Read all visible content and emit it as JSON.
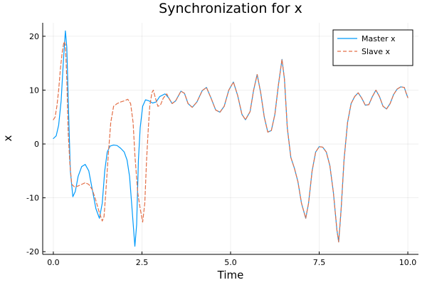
{
  "chart_data": {
    "type": "line",
    "title": "Synchronization for x",
    "xlabel": "Time",
    "ylabel": "x",
    "xlim": [
      -0.3,
      10.3
    ],
    "ylim": [
      -20.5,
      22.5
    ],
    "grid": true,
    "legend_position": "top-right",
    "x_ticks": [
      {
        "value": 0,
        "label": "0.0"
      },
      {
        "value": 2.5,
        "label": "2.5"
      },
      {
        "value": 5,
        "label": "5.0"
      },
      {
        "value": 7.5,
        "label": "7.5"
      },
      {
        "value": 10,
        "label": "10.0"
      }
    ],
    "y_ticks": [
      {
        "value": -20,
        "label": "-20"
      },
      {
        "value": -10,
        "label": "-10"
      },
      {
        "value": 0,
        "label": "0"
      },
      {
        "value": 10,
        "label": "10"
      },
      {
        "value": 20,
        "label": "20"
      }
    ],
    "series": [
      {
        "name": "Master x",
        "color": "#009AFA",
        "dash": "solid",
        "points": [
          [
            0.0,
            1.0
          ],
          [
            0.08,
            1.5
          ],
          [
            0.15,
            3.5
          ],
          [
            0.22,
            8.0
          ],
          [
            0.28,
            15.0
          ],
          [
            0.34,
            21.0
          ],
          [
            0.38,
            18.0
          ],
          [
            0.43,
            6.0
          ],
          [
            0.48,
            -5.0
          ],
          [
            0.55,
            -9.8
          ],
          [
            0.62,
            -8.8
          ],
          [
            0.7,
            -6.0
          ],
          [
            0.8,
            -4.2
          ],
          [
            0.9,
            -3.8
          ],
          [
            1.0,
            -5.0
          ],
          [
            1.1,
            -8.5
          ],
          [
            1.2,
            -12.0
          ],
          [
            1.3,
            -13.8
          ],
          [
            1.38,
            -11.0
          ],
          [
            1.45,
            -5.0
          ],
          [
            1.52,
            -1.5
          ],
          [
            1.6,
            -0.4
          ],
          [
            1.7,
            -0.2
          ],
          [
            1.8,
            -0.3
          ],
          [
            1.9,
            -0.8
          ],
          [
            2.0,
            -1.5
          ],
          [
            2.08,
            -3.0
          ],
          [
            2.15,
            -6.0
          ],
          [
            2.22,
            -12.0
          ],
          [
            2.3,
            -19.0
          ],
          [
            2.35,
            -15.0
          ],
          [
            2.4,
            -3.0
          ],
          [
            2.45,
            3.0
          ],
          [
            2.52,
            7.0
          ],
          [
            2.6,
            8.2
          ],
          [
            2.7,
            8.0
          ],
          [
            2.8,
            7.6
          ],
          [
            2.9,
            7.8
          ],
          [
            3.0,
            8.8
          ],
          [
            3.15,
            9.3
          ],
          [
            3.25,
            8.6
          ],
          [
            3.35,
            7.5
          ],
          [
            3.45,
            8.0
          ],
          [
            3.6,
            9.8
          ],
          [
            3.7,
            9.4
          ],
          [
            3.8,
            7.5
          ],
          [
            3.92,
            6.8
          ],
          [
            4.05,
            7.8
          ],
          [
            4.2,
            9.9
          ],
          [
            4.32,
            10.5
          ],
          [
            4.45,
            8.5
          ],
          [
            4.58,
            6.3
          ],
          [
            4.7,
            5.9
          ],
          [
            4.82,
            7.0
          ],
          [
            4.95,
            10.0
          ],
          [
            5.08,
            11.5
          ],
          [
            5.2,
            9.0
          ],
          [
            5.32,
            5.5
          ],
          [
            5.42,
            4.5
          ],
          [
            5.55,
            6.0
          ],
          [
            5.65,
            10.0
          ],
          [
            5.75,
            12.9
          ],
          [
            5.85,
            9.5
          ],
          [
            5.95,
            5.0
          ],
          [
            6.05,
            2.2
          ],
          [
            6.15,
            2.5
          ],
          [
            6.25,
            5.5
          ],
          [
            6.35,
            11.0
          ],
          [
            6.45,
            15.7
          ],
          [
            6.52,
            12.0
          ],
          [
            6.6,
            3.0
          ],
          [
            6.7,
            -2.5
          ],
          [
            6.8,
            -4.5
          ],
          [
            6.9,
            -7.0
          ],
          [
            7.0,
            -11.0
          ],
          [
            7.12,
            -13.8
          ],
          [
            7.2,
            -11.0
          ],
          [
            7.3,
            -5.0
          ],
          [
            7.4,
            -1.5
          ],
          [
            7.5,
            -0.5
          ],
          [
            7.6,
            -0.6
          ],
          [
            7.7,
            -1.5
          ],
          [
            7.8,
            -4.0
          ],
          [
            7.9,
            -9.0
          ],
          [
            8.0,
            -16.0
          ],
          [
            8.05,
            -18.2
          ],
          [
            8.12,
            -12.0
          ],
          [
            8.2,
            -3.0
          ],
          [
            8.3,
            4.0
          ],
          [
            8.4,
            7.5
          ],
          [
            8.5,
            8.8
          ],
          [
            8.6,
            9.5
          ],
          [
            8.7,
            8.5
          ],
          [
            8.8,
            7.2
          ],
          [
            8.9,
            7.3
          ],
          [
            9.0,
            8.8
          ],
          [
            9.1,
            10.0
          ],
          [
            9.2,
            8.8
          ],
          [
            9.3,
            7.0
          ],
          [
            9.4,
            6.5
          ],
          [
            9.5,
            7.5
          ],
          [
            9.6,
            9.2
          ],
          [
            9.7,
            10.2
          ],
          [
            9.8,
            10.6
          ],
          [
            9.9,
            10.5
          ],
          [
            9.95,
            9.5
          ],
          [
            10.0,
            8.6
          ]
        ]
      },
      {
        "name": "Slave x",
        "color": "#E36F47",
        "dash": "dashed",
        "points": [
          [
            0.0,
            4.5
          ],
          [
            0.05,
            5.0
          ],
          [
            0.1,
            7.0
          ],
          [
            0.15,
            10.0
          ],
          [
            0.2,
            14.0
          ],
          [
            0.25,
            17.0
          ],
          [
            0.3,
            19.0
          ],
          [
            0.34,
            18.5
          ],
          [
            0.38,
            12.0
          ],
          [
            0.42,
            2.0
          ],
          [
            0.47,
            -4.0
          ],
          [
            0.52,
            -7.5
          ],
          [
            0.6,
            -8.0
          ],
          [
            0.7,
            -7.8
          ],
          [
            0.8,
            -7.5
          ],
          [
            0.9,
            -7.2
          ],
          [
            1.0,
            -7.5
          ],
          [
            1.1,
            -8.5
          ],
          [
            1.2,
            -10.5
          ],
          [
            1.3,
            -12.8
          ],
          [
            1.38,
            -14.3
          ],
          [
            1.43,
            -13.5
          ],
          [
            1.48,
            -9.0
          ],
          [
            1.55,
            -2.0
          ],
          [
            1.62,
            4.0
          ],
          [
            1.7,
            7.0
          ],
          [
            1.8,
            7.5
          ],
          [
            1.9,
            7.8
          ],
          [
            2.0,
            8.0
          ],
          [
            2.1,
            8.3
          ],
          [
            2.18,
            7.5
          ],
          [
            2.25,
            4.0
          ],
          [
            2.3,
            -2.0
          ],
          [
            2.38,
            -9.0
          ],
          [
            2.45,
            -12.0
          ],
          [
            2.52,
            -14.5
          ],
          [
            2.58,
            -11.0
          ],
          [
            2.63,
            -3.0
          ],
          [
            2.68,
            3.0
          ],
          [
            2.72,
            7.0
          ],
          [
            2.78,
            9.5
          ],
          [
            2.82,
            10.0
          ],
          [
            2.88,
            8.5
          ],
          [
            2.95,
            7.0
          ],
          [
            3.02,
            7.2
          ],
          [
            3.1,
            8.5
          ],
          [
            3.2,
            9.3
          ],
          [
            3.25,
            8.6
          ],
          [
            3.35,
            7.5
          ],
          [
            3.45,
            8.0
          ],
          [
            3.6,
            9.8
          ],
          [
            3.7,
            9.4
          ],
          [
            3.8,
            7.5
          ],
          [
            3.92,
            6.8
          ],
          [
            4.05,
            7.8
          ],
          [
            4.2,
            9.9
          ],
          [
            4.32,
            10.5
          ],
          [
            4.45,
            8.5
          ],
          [
            4.58,
            6.3
          ],
          [
            4.7,
            5.9
          ],
          [
            4.82,
            7.0
          ],
          [
            4.95,
            10.0
          ],
          [
            5.08,
            11.5
          ],
          [
            5.2,
            9.0
          ],
          [
            5.32,
            5.5
          ],
          [
            5.42,
            4.5
          ],
          [
            5.55,
            6.0
          ],
          [
            5.65,
            10.0
          ],
          [
            5.75,
            12.9
          ],
          [
            5.85,
            9.5
          ],
          [
            5.95,
            5.0
          ],
          [
            6.05,
            2.2
          ],
          [
            6.15,
            2.5
          ],
          [
            6.25,
            5.5
          ],
          [
            6.35,
            11.0
          ],
          [
            6.45,
            15.7
          ],
          [
            6.52,
            12.0
          ],
          [
            6.6,
            3.0
          ],
          [
            6.7,
            -2.5
          ],
          [
            6.8,
            -4.5
          ],
          [
            6.9,
            -7.0
          ],
          [
            7.0,
            -11.0
          ],
          [
            7.12,
            -13.8
          ],
          [
            7.2,
            -11.0
          ],
          [
            7.3,
            -5.0
          ],
          [
            7.4,
            -1.5
          ],
          [
            7.5,
            -0.5
          ],
          [
            7.6,
            -0.6
          ],
          [
            7.7,
            -1.5
          ],
          [
            7.8,
            -4.0
          ],
          [
            7.9,
            -9.0
          ],
          [
            8.0,
            -16.0
          ],
          [
            8.05,
            -18.2
          ],
          [
            8.12,
            -12.0
          ],
          [
            8.2,
            -3.0
          ],
          [
            8.3,
            4.0
          ],
          [
            8.4,
            7.5
          ],
          [
            8.5,
            8.8
          ],
          [
            8.6,
            9.5
          ],
          [
            8.7,
            8.5
          ],
          [
            8.8,
            7.2
          ],
          [
            8.9,
            7.3
          ],
          [
            9.0,
            8.8
          ],
          [
            9.1,
            10.0
          ],
          [
            9.2,
            8.8
          ],
          [
            9.3,
            7.0
          ],
          [
            9.4,
            6.5
          ],
          [
            9.5,
            7.5
          ],
          [
            9.6,
            9.2
          ],
          [
            9.7,
            10.2
          ],
          [
            9.8,
            10.6
          ],
          [
            9.9,
            10.5
          ],
          [
            9.95,
            9.5
          ],
          [
            10.0,
            8.6
          ]
        ]
      }
    ]
  }
}
